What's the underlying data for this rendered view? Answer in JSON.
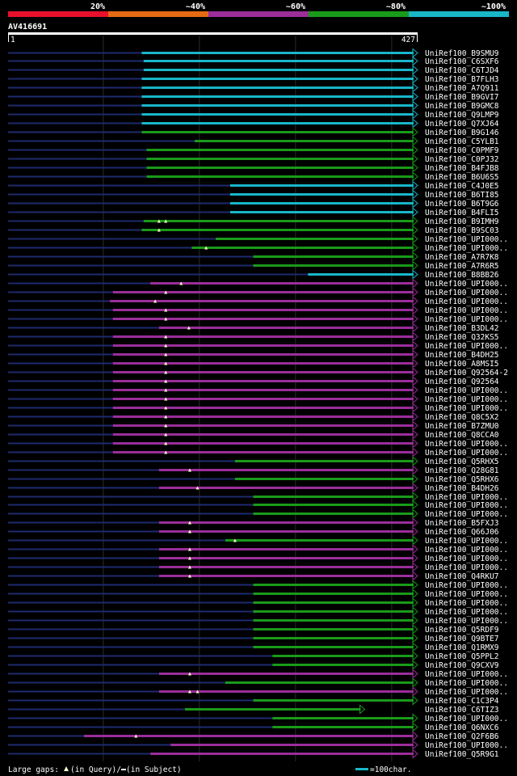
{
  "chart_data": {
    "type": "alignment-overview",
    "query_id": "AV416691",
    "query_start": "1",
    "query_end": "427",
    "query_length": 427,
    "identity_legend": [
      {
        "label": "20%",
        "color": "#e8102c"
      },
      {
        "label": "~40%",
        "color": "#e46a14"
      },
      {
        "label": "~60%",
        "color": "#9a2e9a"
      },
      {
        "label": "~80%",
        "color": "#1a9a1a"
      },
      {
        "label": "~100%",
        "color": "#18b6c8"
      }
    ],
    "footer": {
      "gaps_prefix": "Large gaps: ",
      "gaps_query": "(in Query)/",
      "gaps_subject": " (in Subject)",
      "scale": "=100char."
    },
    "hits": [
      {
        "name": "UniRef100_B9SMU9",
        "start": 140,
        "end": 427,
        "color": "#18b6c8",
        "markers": []
      },
      {
        "name": "UniRef100_C6SXF6",
        "start": 142,
        "end": 427,
        "color": "#18b6c8",
        "markers": []
      },
      {
        "name": "UniRef100_C6TJD4",
        "start": 142,
        "end": 427,
        "color": "#18b6c8",
        "markers": []
      },
      {
        "name": "UniRef100_B7FLH3",
        "start": 140,
        "end": 427,
        "color": "#18b6c8",
        "markers": []
      },
      {
        "name": "UniRef100_A7Q911",
        "start": 140,
        "end": 427,
        "color": "#18b6c8",
        "markers": []
      },
      {
        "name": "UniRef100_B9GVI7",
        "start": 140,
        "end": 427,
        "color": "#18b6c8",
        "markers": []
      },
      {
        "name": "UniRef100_B9GMC8",
        "start": 140,
        "end": 427,
        "color": "#18b6c8",
        "markers": []
      },
      {
        "name": "UniRef100_Q9LMP9",
        "start": 140,
        "end": 427,
        "color": "#18b6c8",
        "markers": []
      },
      {
        "name": "UniRef100_Q7XJ64",
        "start": 140,
        "end": 427,
        "color": "#18b6c8",
        "markers": []
      },
      {
        "name": "UniRef100_B9G146",
        "start": 140,
        "end": 427,
        "color": "#1a9a1a",
        "markers": []
      },
      {
        "name": "UniRef100_C5YLB1",
        "start": 195,
        "end": 427,
        "color": "#1a9a1a",
        "markers": []
      },
      {
        "name": "UniRef100_C0PMF9",
        "start": 145,
        "end": 427,
        "color": "#1a9a1a",
        "markers": []
      },
      {
        "name": "UniRef100_C0PJ32",
        "start": 145,
        "end": 427,
        "color": "#1a9a1a",
        "markers": []
      },
      {
        "name": "UniRef100_B4FJB8",
        "start": 145,
        "end": 427,
        "color": "#1a9a1a",
        "markers": []
      },
      {
        "name": "UniRef100_B6U6S5",
        "start": 145,
        "end": 427,
        "color": "#1a9a1a",
        "markers": []
      },
      {
        "name": "UniRef100_C4J0E5",
        "start": 232,
        "end": 427,
        "color": "#18b6c8",
        "markers": []
      },
      {
        "name": "UniRef100_B6TI85",
        "start": 232,
        "end": 427,
        "color": "#18b6c8",
        "markers": []
      },
      {
        "name": "UniRef100_B6T9G6",
        "start": 232,
        "end": 427,
        "color": "#18b6c8",
        "markers": []
      },
      {
        "name": "UniRef100_B4FLI5",
        "start": 232,
        "end": 427,
        "color": "#18b6c8",
        "markers": []
      },
      {
        "name": "UniRef100_B9IMH9",
        "start": 142,
        "end": 427,
        "color": "#1a9a1a",
        "markers": [
          158,
          165
        ]
      },
      {
        "name": "UniRef100_B9SC03",
        "start": 140,
        "end": 427,
        "color": "#1a9a1a",
        "markers": [
          158
        ]
      },
      {
        "name": "UniRef100_UPI000..",
        "start": 217,
        "end": 427,
        "color": "#1a9a1a",
        "markers": []
      },
      {
        "name": "UniRef100_UPI000..",
        "start": 192,
        "end": 427,
        "color": "#1a9a1a",
        "markers": [
          207
        ]
      },
      {
        "name": "UniRef100_A7R7K8",
        "start": 256,
        "end": 427,
        "color": "#1a9a1a",
        "markers": []
      },
      {
        "name": "UniRef100_A7R6R5",
        "start": 256,
        "end": 427,
        "color": "#1a9a1a",
        "markers": []
      },
      {
        "name": "UniRef100_B8BB26",
        "start": 313,
        "end": 427,
        "color": "#18b6c8",
        "markers": []
      },
      {
        "name": "UniRef100_UPI000..",
        "start": 149,
        "end": 427,
        "color": "#9a2e9a",
        "markers": [
          181
        ]
      },
      {
        "name": "UniRef100_UPI000..",
        "start": 110,
        "end": 427,
        "color": "#9a2e9a",
        "markers": [
          165
        ]
      },
      {
        "name": "UniRef100_UPI000..",
        "start": 107,
        "end": 427,
        "color": "#9a2e9a",
        "markers": [
          154
        ]
      },
      {
        "name": "UniRef100_UPI000..",
        "start": 110,
        "end": 427,
        "color": "#9a2e9a",
        "markers": [
          165
        ]
      },
      {
        "name": "UniRef100_UPI000..",
        "start": 110,
        "end": 427,
        "color": "#9a2e9a",
        "markers": [
          165
        ]
      },
      {
        "name": "UniRef100_B3DL42",
        "start": 158,
        "end": 427,
        "color": "#9a2e9a",
        "markers": [
          189
        ]
      },
      {
        "name": "UniRef100_Q32KS5",
        "start": 110,
        "end": 427,
        "color": "#9a2e9a",
        "markers": [
          165
        ]
      },
      {
        "name": "UniRef100_UPI000..",
        "start": 110,
        "end": 427,
        "color": "#9a2e9a",
        "markers": [
          165
        ]
      },
      {
        "name": "UniRef100_B4DH25",
        "start": 110,
        "end": 427,
        "color": "#9a2e9a",
        "markers": [
          165
        ]
      },
      {
        "name": "UniRef100_A8MSI5",
        "start": 110,
        "end": 427,
        "color": "#9a2e9a",
        "markers": [
          165
        ]
      },
      {
        "name": "UniRef100_Q92564-2",
        "start": 110,
        "end": 427,
        "color": "#9a2e9a",
        "markers": [
          165
        ]
      },
      {
        "name": "UniRef100_Q92564",
        "start": 110,
        "end": 427,
        "color": "#9a2e9a",
        "markers": [
          165
        ]
      },
      {
        "name": "UniRef100_UPI000..",
        "start": 110,
        "end": 427,
        "color": "#9a2e9a",
        "markers": [
          165
        ]
      },
      {
        "name": "UniRef100_UPI000..",
        "start": 110,
        "end": 427,
        "color": "#9a2e9a",
        "markers": [
          165
        ]
      },
      {
        "name": "UniRef100_UPI000..",
        "start": 110,
        "end": 427,
        "color": "#9a2e9a",
        "markers": [
          165
        ]
      },
      {
        "name": "UniRef100_Q8C5X2",
        "start": 110,
        "end": 427,
        "color": "#9a2e9a",
        "markers": [
          165
        ]
      },
      {
        "name": "UniRef100_B7ZMU0",
        "start": 110,
        "end": 427,
        "color": "#9a2e9a",
        "markers": [
          165
        ]
      },
      {
        "name": "UniRef100_Q8CCA0",
        "start": 110,
        "end": 427,
        "color": "#9a2e9a",
        "markers": [
          165
        ]
      },
      {
        "name": "UniRef100_UPI000..",
        "start": 110,
        "end": 427,
        "color": "#9a2e9a",
        "markers": [
          165
        ]
      },
      {
        "name": "UniRef100_UPI000..",
        "start": 110,
        "end": 427,
        "color": "#9a2e9a",
        "markers": [
          165
        ]
      },
      {
        "name": "UniRef100_Q5RHX5",
        "start": 237,
        "end": 427,
        "color": "#1a9a1a",
        "markers": []
      },
      {
        "name": "UniRef100_Q28G81",
        "start": 158,
        "end": 427,
        "color": "#9a2e9a",
        "markers": [
          190
        ]
      },
      {
        "name": "UniRef100_Q5RHX6",
        "start": 237,
        "end": 427,
        "color": "#1a9a1a",
        "markers": []
      },
      {
        "name": "UniRef100_B4DH26",
        "start": 158,
        "end": 427,
        "color": "#9a2e9a",
        "markers": [
          198
        ]
      },
      {
        "name": "UniRef100_UPI000..",
        "start": 256,
        "end": 427,
        "color": "#1a9a1a",
        "markers": []
      },
      {
        "name": "UniRef100_UPI000..",
        "start": 256,
        "end": 427,
        "color": "#1a9a1a",
        "markers": []
      },
      {
        "name": "UniRef100_UPI000..",
        "start": 256,
        "end": 427,
        "color": "#1a9a1a",
        "markers": []
      },
      {
        "name": "UniRef100_B5FXJ3",
        "start": 158,
        "end": 427,
        "color": "#9a2e9a",
        "markers": [
          190
        ]
      },
      {
        "name": "UniRef100_Q66J06",
        "start": 158,
        "end": 427,
        "color": "#9a2e9a",
        "markers": [
          190
        ]
      },
      {
        "name": "UniRef100_UPI000..",
        "start": 227,
        "end": 427,
        "color": "#1a9a1a",
        "markers": [
          237
        ]
      },
      {
        "name": "UniRef100_UPI000..",
        "start": 158,
        "end": 427,
        "color": "#9a2e9a",
        "markers": [
          190
        ]
      },
      {
        "name": "UniRef100_UPI000..",
        "start": 158,
        "end": 427,
        "color": "#9a2e9a",
        "markers": [
          190
        ]
      },
      {
        "name": "UniRef100_UPI000..",
        "start": 158,
        "end": 427,
        "color": "#9a2e9a",
        "markers": [
          190
        ]
      },
      {
        "name": "UniRef100_Q4RKU7",
        "start": 158,
        "end": 427,
        "color": "#9a2e9a",
        "markers": [
          190
        ]
      },
      {
        "name": "UniRef100_UPI000..",
        "start": 256,
        "end": 427,
        "color": "#1a9a1a",
        "markers": []
      },
      {
        "name": "UniRef100_UPI000..",
        "start": 256,
        "end": 427,
        "color": "#1a9a1a",
        "markers": []
      },
      {
        "name": "UniRef100_UPI000..",
        "start": 256,
        "end": 427,
        "color": "#1a9a1a",
        "markers": []
      },
      {
        "name": "UniRef100_UPI000..",
        "start": 256,
        "end": 427,
        "color": "#1a9a1a",
        "markers": []
      },
      {
        "name": "UniRef100_UPI000..",
        "start": 256,
        "end": 427,
        "color": "#1a9a1a",
        "markers": []
      },
      {
        "name": "UniRef100_Q5RDF9",
        "start": 256,
        "end": 427,
        "color": "#1a9a1a",
        "markers": []
      },
      {
        "name": "UniRef100_Q9BTE7",
        "start": 256,
        "end": 427,
        "color": "#1a9a1a",
        "markers": []
      },
      {
        "name": "UniRef100_Q1RMX9",
        "start": 256,
        "end": 427,
        "color": "#1a9a1a",
        "markers": []
      },
      {
        "name": "UniRef100_Q5PPL2",
        "start": 276,
        "end": 427,
        "color": "#1a9a1a",
        "markers": []
      },
      {
        "name": "UniRef100_Q9CXV9",
        "start": 276,
        "end": 427,
        "color": "#1a9a1a",
        "markers": []
      },
      {
        "name": "UniRef100_UPI000..",
        "start": 158,
        "end": 427,
        "color": "#9a2e9a",
        "markers": [
          190
        ]
      },
      {
        "name": "UniRef100_UPI000..",
        "start": 227,
        "end": 427,
        "color": "#1a9a1a",
        "markers": []
      },
      {
        "name": "UniRef100_UPI000..",
        "start": 158,
        "end": 427,
        "color": "#9a2e9a",
        "markers": [
          190,
          198
        ]
      },
      {
        "name": "UniRef100_C1C3P4",
        "start": 256,
        "end": 427,
        "color": "#1a9a1a",
        "markers": []
      },
      {
        "name": "UniRef100_C6TIZ3",
        "start": 185,
        "end": 372,
        "color": "#1a9a1a",
        "markers": []
      },
      {
        "name": "UniRef100_UPI000..",
        "start": 276,
        "end": 427,
        "color": "#1a9a1a",
        "markers": []
      },
      {
        "name": "UniRef100_Q6NXC6",
        "start": 276,
        "end": 427,
        "color": "#1a9a1a",
        "markers": []
      },
      {
        "name": "UniRef100_Q2F6B6",
        "start": 80,
        "end": 427,
        "color": "#9a2e9a",
        "markers": [
          134
        ]
      },
      {
        "name": "UniRef100_UPI000..",
        "start": 170,
        "end": 427,
        "color": "#9a2e9a",
        "markers": []
      },
      {
        "name": "UniRef100_Q5R9G1",
        "start": 149,
        "end": 427,
        "color": "#9a2e9a",
        "markers": []
      }
    ]
  }
}
